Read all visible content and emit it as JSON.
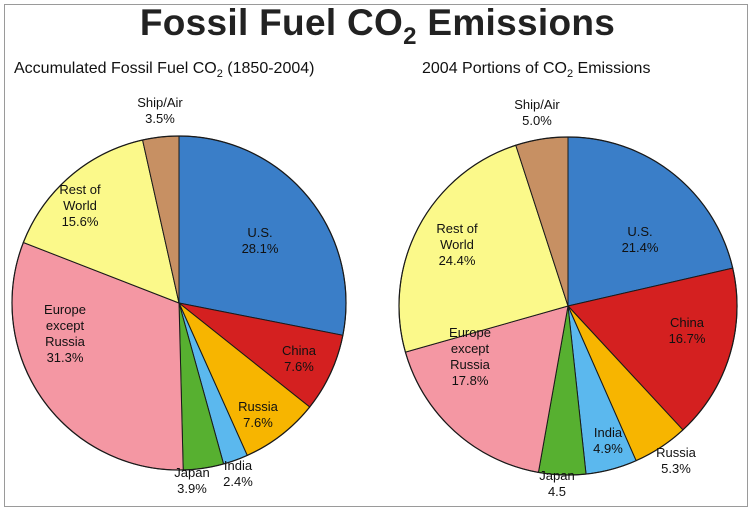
{
  "figure": {
    "title_main": "Fossil Fuel CO",
    "title_sub": "2",
    "title_end": " Emissions"
  },
  "chart_data": [
    {
      "type": "pie",
      "title_main": "Accumulated Fossil Fuel CO",
      "title_sub": "2",
      "title_end": " (1850-2004)",
      "slices": [
        {
          "label": [
            "U.S."
          ],
          "value_text": "28.1%",
          "value": 28.1,
          "color": "#3a7ec8"
        },
        {
          "label": [
            "China"
          ],
          "value_text": "7.6%",
          "value": 7.6,
          "color": "#d42020"
        },
        {
          "label": [
            "Russia"
          ],
          "value_text": "7.6%",
          "value": 7.6,
          "color": "#f7b500"
        },
        {
          "label": [
            "India"
          ],
          "value_text": "2.4%",
          "value": 2.4,
          "color": "#5bb8ee"
        },
        {
          "label": [
            "Japan"
          ],
          "value_text": "3.9%",
          "value": 3.9,
          "color": "#57b030"
        },
        {
          "label": [
            "Europe",
            "except",
            "Russia"
          ],
          "value_text": "31.3%",
          "value": 31.3,
          "color": "#f497a3"
        },
        {
          "label": [
            "Rest of",
            "World"
          ],
          "value_text": "15.6%",
          "value": 15.6,
          "color": "#fbf98a"
        },
        {
          "label": [
            "Ship/Air"
          ],
          "value_text": "3.5%",
          "value": 3.5,
          "color": "#c79063"
        }
      ]
    },
    {
      "type": "pie",
      "title_main": "2004 Portions of CO",
      "title_sub": "2",
      "title_end": " Emissions",
      "slices": [
        {
          "label": [
            "U.S."
          ],
          "value_text": "21.4%",
          "value": 21.4,
          "color": "#3a7ec8"
        },
        {
          "label": [
            "China"
          ],
          "value_text": "16.7%",
          "value": 16.7,
          "color": "#d42020"
        },
        {
          "label": [
            "Russia"
          ],
          "value_text": "5.3%",
          "value": 5.3,
          "color": "#f7b500"
        },
        {
          "label": [
            "India"
          ],
          "value_text": "4.9%",
          "value": 4.9,
          "color": "#5bb8ee"
        },
        {
          "label": [
            "Japan"
          ],
          "value_text": "4.5",
          "value": 4.5,
          "color": "#57b030"
        },
        {
          "label": [
            "Europe",
            "except",
            "Russia"
          ],
          "value_text": "17.8%",
          "value": 17.8,
          "color": "#f497a3"
        },
        {
          "label": [
            "Rest of",
            "World"
          ],
          "value_text": "24.4%",
          "value": 24.4,
          "color": "#fbf98a"
        },
        {
          "label": [
            "Ship/Air"
          ],
          "value_text": "5.0%",
          "value": 5.0,
          "color": "#c79063"
        }
      ]
    }
  ]
}
